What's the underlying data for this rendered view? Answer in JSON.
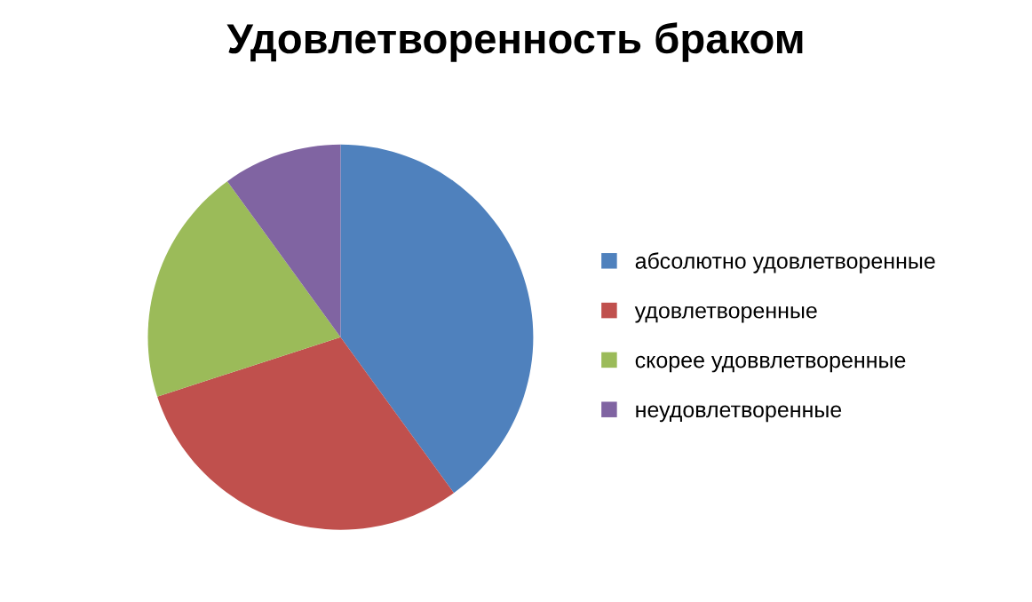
{
  "chart_data": {
    "type": "pie",
    "title": "Удовлетворенность браком",
    "categories": [
      "абсолютно удовлетворенные",
      "удовлетворенные",
      "скорее удоввлетворенные",
      "неудовлетворенные"
    ],
    "values": [
      40,
      30,
      20,
      10
    ],
    "colors": [
      "#4f81bd",
      "#c0504d",
      "#9bbb59",
      "#8064a2"
    ],
    "legend": "right"
  }
}
